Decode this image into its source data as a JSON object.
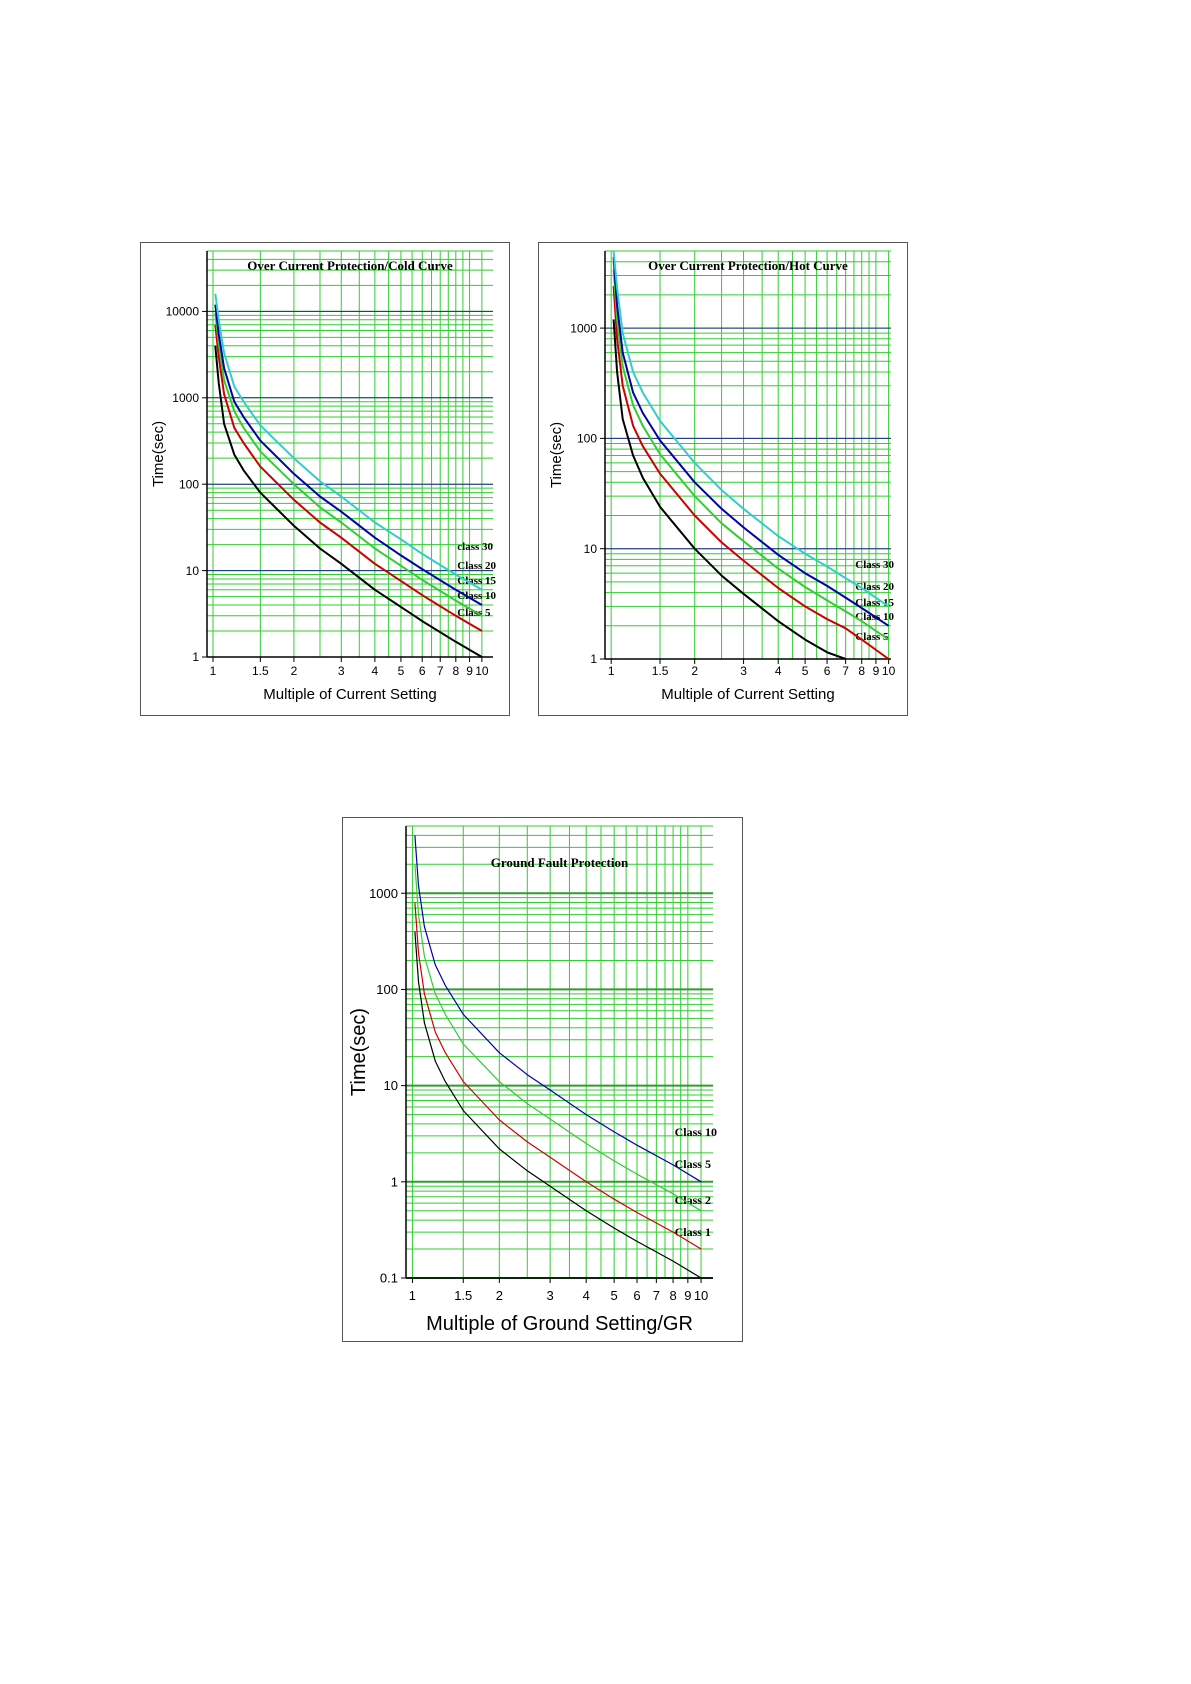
{
  "chart_data": [
    {
      "type": "line",
      "title": "Over Current Protection/Cold Curve",
      "xlabel": "Multiple of Current Setting",
      "ylabel": "Time(sec)",
      "x_scale": "log",
      "y_scale": "log",
      "xlim": [
        0.95,
        11
      ],
      "ylim": [
        1,
        50000
      ],
      "x_ticks": [
        1,
        1.5,
        2,
        3,
        4,
        5,
        6,
        7,
        8,
        9,
        10
      ],
      "x_tick_labels": [
        "1",
        "1.5",
        "2",
        "3",
        "4",
        "5",
        "6",
        "7",
        "8",
        "9",
        "10"
      ],
      "y_ticks": [
        1,
        10,
        100,
        1000,
        10000
      ],
      "y_tick_labels": [
        "1",
        "10",
        "100",
        "1000",
        "10000"
      ],
      "grid": true,
      "x": [
        1.02,
        1.05,
        1.1,
        1.2,
        1.3,
        1.5,
        2,
        2.5,
        3,
        4,
        5,
        6,
        8,
        10
      ],
      "series": [
        {
          "name": "Class 5",
          "color": "#000000",
          "values": [
            4000,
            1500,
            500,
            220,
            145,
            80,
            33,
            18,
            12,
            6,
            3.8,
            2.6,
            1.5,
            1
          ]
        },
        {
          "name": "Class 10",
          "color": "#cc0000",
          "values": [
            7000,
            3000,
            1100,
            450,
            300,
            160,
            66,
            36,
            24,
            12,
            7.6,
            5.2,
            3,
            2
          ]
        },
        {
          "name": "Class 15",
          "color": "#33cc33",
          "values": [
            9500,
            4300,
            1600,
            700,
            450,
            240,
            100,
            54,
            36,
            18,
            11.4,
            7.8,
            4.5,
            3
          ]
        },
        {
          "name": "Class 20",
          "color": "#0000aa",
          "values": [
            12000,
            5500,
            2200,
            900,
            600,
            320,
            132,
            72,
            48,
            24,
            15,
            10.4,
            6,
            4
          ]
        },
        {
          "name": "class 30",
          "color": "#33cccc",
          "values": [
            16000,
            8000,
            3300,
            1350,
            900,
            480,
            200,
            108,
            72,
            36,
            23,
            15.6,
            9,
            6
          ]
        }
      ]
    },
    {
      "type": "line",
      "title": "Over Current Protection/Hot Curve",
      "xlabel": "Multiple of Current Setting",
      "ylabel": "Time(sec)",
      "x_scale": "log",
      "y_scale": "log",
      "xlim": [
        0.95,
        10.2
      ],
      "ylim": [
        1,
        5000
      ],
      "x_ticks": [
        1,
        1.5,
        2,
        3,
        4,
        5,
        6,
        7,
        8,
        9,
        10
      ],
      "x_tick_labels": [
        "1",
        "1.5",
        "2",
        "3",
        "4",
        "5",
        "6",
        "7",
        "8",
        "9",
        "10"
      ],
      "y_ticks": [
        1,
        10,
        100,
        1000
      ],
      "y_tick_labels": [
        "1",
        "10",
        "100",
        "1000"
      ],
      "grid": true,
      "x": [
        1.02,
        1.05,
        1.1,
        1.2,
        1.3,
        1.5,
        2,
        2.5,
        3,
        4,
        5,
        6,
        7,
        8,
        10
      ],
      "series": [
        {
          "name": "Class 5",
          "color": "#000000",
          "values": [
            1200,
            400,
            150,
            70,
            44,
            24,
            10,
            5.7,
            3.9,
            2.2,
            1.5,
            1.15,
            1,
            null,
            null
          ]
        },
        {
          "name": "Class 10",
          "color": "#cc0000",
          "values": [
            2400,
            800,
            300,
            130,
            85,
            48,
            20,
            11.4,
            7.8,
            4.4,
            3,
            2.3,
            1.9,
            1.5,
            1
          ]
        },
        {
          "name": "Class 15",
          "color": "#33cc33",
          "values": [
            3400,
            1200,
            450,
            200,
            130,
            72,
            30,
            17,
            11.7,
            6.6,
            4.5,
            3.4,
            2.7,
            2.2,
            1.5
          ]
        },
        {
          "name": "Class 20",
          "color": "#0000aa",
          "values": [
            4400,
            1600,
            600,
            260,
            170,
            96,
            40,
            23,
            15.6,
            8.8,
            6,
            4.6,
            3.6,
            2.9,
            2
          ]
        },
        {
          "name": "Class 30",
          "color": "#33cccc",
          "values": [
            5000,
            2300,
            900,
            400,
            260,
            144,
            60,
            34,
            23,
            13,
            9,
            6.9,
            5.4,
            4.4,
            3
          ]
        }
      ]
    },
    {
      "type": "line",
      "title": "Ground Fault Protection",
      "xlabel": "Multiple of Ground Setting/GR",
      "ylabel": "Time(sec)",
      "x_scale": "log",
      "y_scale": "log",
      "xlim": [
        0.95,
        11
      ],
      "ylim": [
        0.1,
        5000
      ],
      "x_ticks": [
        1,
        1.5,
        2,
        3,
        4,
        5,
        6,
        7,
        8,
        9,
        10
      ],
      "x_tick_labels": [
        "1",
        "1.5",
        "2",
        "3",
        "4",
        "5",
        "6",
        "7",
        "8",
        "9",
        "10"
      ],
      "y_ticks": [
        0.1,
        1,
        10,
        100,
        1000
      ],
      "y_tick_labels": [
        "0.1",
        "1",
        "10",
        "100",
        "1000"
      ],
      "grid": true,
      "x": [
        1.02,
        1.05,
        1.1,
        1.2,
        1.3,
        1.5,
        2,
        2.5,
        3,
        4,
        5,
        6,
        8,
        10
      ],
      "series": [
        {
          "name": "Class 1",
          "color": "#000000",
          "values": [
            400,
            120,
            45,
            18,
            11,
            5.5,
            2.2,
            1.3,
            0.9,
            0.5,
            0.33,
            0.24,
            0.15,
            0.1
          ]
        },
        {
          "name": "Class 2",
          "color": "#cc0000",
          "values": [
            800,
            240,
            90,
            36,
            22,
            11,
            4.4,
            2.6,
            1.8,
            1,
            0.66,
            0.48,
            0.3,
            0.2
          ]
        },
        {
          "name": "Class 5",
          "color": "#33cc33",
          "values": [
            2000,
            600,
            220,
            90,
            55,
            27,
            11,
            6.5,
            4.5,
            2.5,
            1.65,
            1.2,
            0.75,
            0.5
          ]
        },
        {
          "name": "Class 10",
          "color": "#0000aa",
          "values": [
            4000,
            1200,
            450,
            180,
            110,
            55,
            22,
            13,
            9,
            5,
            3.3,
            2.4,
            1.5,
            1
          ]
        }
      ]
    }
  ]
}
